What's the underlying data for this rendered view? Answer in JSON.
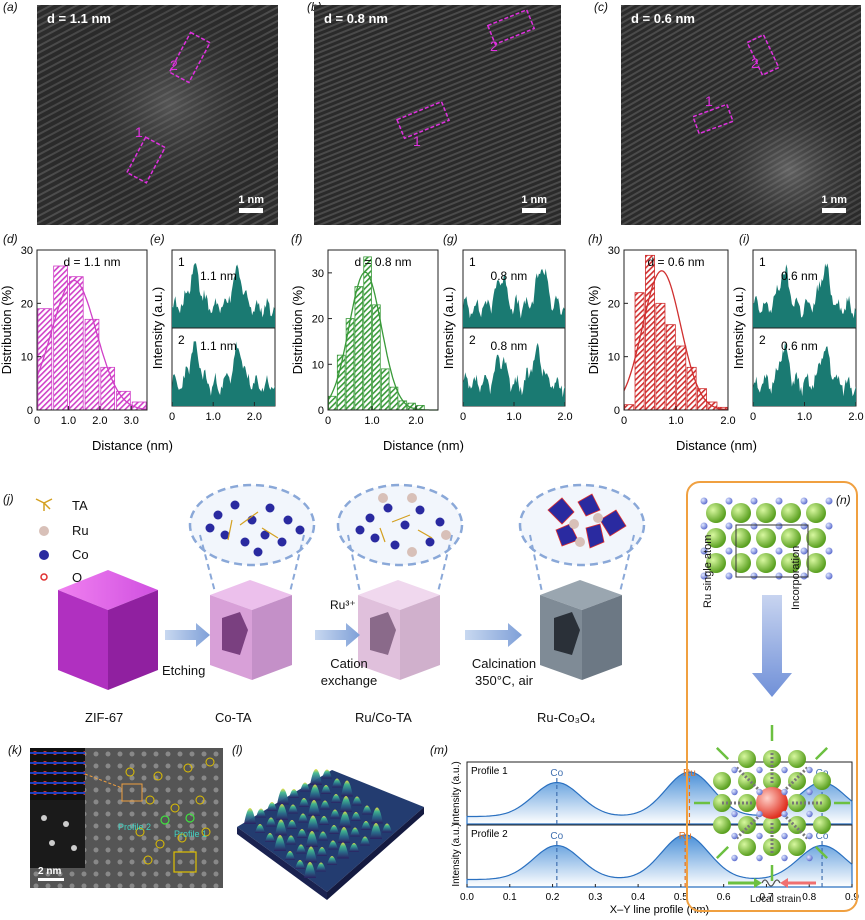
{
  "panel_labels": {
    "a": "(a)",
    "b": "(b)",
    "c": "(c)",
    "d": "(d)",
    "e": "(e)",
    "f": "(f)",
    "g": "(g)",
    "h": "(h)",
    "i": "(i)",
    "j": "(j)",
    "k": "(k)",
    "l": "(l)",
    "m": "(m)",
    "n": "(n)"
  },
  "stem_images": [
    {
      "d_label": "d = 1.1 nm",
      "scale": "1 nm",
      "roi1": "1",
      "roi2": "2"
    },
    {
      "d_label": "d = 0.8 nm",
      "scale": "1 nm",
      "roi1": "1",
      "roi2": "2"
    },
    {
      "d_label": "d = 0.6 nm",
      "scale": "1 nm",
      "roi1": "1",
      "roi2": "2"
    }
  ],
  "chart_data": [
    {
      "type": "bar",
      "title": "d = 1.1 nm",
      "xlabel": "Distance",
      "ylabel": "Distribution (%)",
      "xlim": [
        0,
        3.5
      ],
      "ylim": [
        0,
        30
      ],
      "x": [
        0.25,
        0.75,
        1.25,
        1.75,
        2.25,
        2.75,
        3.25
      ],
      "values": [
        19,
        27,
        25,
        17,
        8,
        3.5,
        1.5
      ],
      "xticks": [
        "0",
        "1.0",
        "2.0",
        "3.0"
      ],
      "yticks": [
        "0",
        "10",
        "20",
        "30"
      ],
      "color": "#d040c8"
    },
    {
      "type": "line",
      "ylabel": "Intensity (a.u.)",
      "xlim": [
        0,
        2.5
      ],
      "xticks": [
        "0",
        "1.0",
        "2.0"
      ],
      "profiles": [
        {
          "id": "1",
          "annotation": "1.1 nm"
        },
        {
          "id": "2",
          "annotation": "1.1 nm"
        }
      ]
    },
    {
      "type": "bar",
      "title": "d = 0.8 nm",
      "xlabel": "Distance",
      "ylabel": "Distribution (%)",
      "xlim": [
        0,
        2.5
      ],
      "ylim": [
        0,
        35
      ],
      "x": [
        0.1,
        0.3,
        0.5,
        0.7,
        0.9,
        1.1,
        1.3,
        1.5,
        1.7,
        1.9,
        2.1
      ],
      "values": [
        3,
        12,
        20,
        27,
        33.5,
        23,
        9,
        5,
        2,
        1.5,
        1
      ],
      "xticks": [
        "0",
        "1.0",
        "2.0"
      ],
      "yticks": [
        "0",
        "10",
        "20",
        "30"
      ],
      "color": "#3a9a3a"
    },
    {
      "type": "line",
      "ylabel": "Intensity (a.u.)",
      "xlim": [
        0,
        2.0
      ],
      "xticks": [
        "0",
        "1.0",
        "2.0"
      ],
      "profiles": [
        {
          "id": "1",
          "annotation": "0.8 nm"
        },
        {
          "id": "2",
          "annotation": "0.8 nm"
        }
      ]
    },
    {
      "type": "bar",
      "title": "d = 0.6 nm",
      "xlabel": "Distance",
      "ylabel": "Distribution (%)",
      "xlim": [
        0,
        2.0
      ],
      "ylim": [
        0,
        30
      ],
      "x": [
        0.1,
        0.3,
        0.5,
        0.7,
        0.9,
        1.1,
        1.3,
        1.5,
        1.7,
        1.9
      ],
      "values": [
        1,
        22,
        29,
        20,
        16,
        12,
        8,
        4,
        1.5,
        0.5
      ],
      "xticks": [
        "0",
        "1.0",
        "2.0"
      ],
      "yticks": [
        "0",
        "10",
        "20",
        "30"
      ],
      "color": "#d03030"
    },
    {
      "type": "line",
      "ylabel": "Intensity (a.u.)",
      "xlim": [
        0,
        2.0
      ],
      "xticks": [
        "0",
        "1.0",
        "2.0"
      ],
      "profiles": [
        {
          "id": "1",
          "annotation": "0.6 nm"
        },
        {
          "id": "2",
          "annotation": "0.6 nm"
        }
      ]
    },
    {
      "type": "line",
      "xlabel": "X–Y line profile (nm)",
      "ylabel": "Intensity (a.u.)",
      "xlim": [
        0,
        0.9
      ],
      "xticks": [
        "0.0",
        "0.1",
        "0.2",
        "0.3",
        "0.4",
        "0.5",
        "0.6",
        "0.7",
        "0.8",
        "0.9"
      ],
      "profiles": [
        {
          "name": "Profile 1",
          "peaks": [
            {
              "x": 0.21,
              "label": "Co"
            },
            {
              "x": 0.52,
              "label": "Ru"
            },
            {
              "x": 0.83,
              "label": "Co"
            }
          ]
        },
        {
          "name": "Profile 2",
          "peaks": [
            {
              "x": 0.21,
              "label": "Co"
            },
            {
              "x": 0.51,
              "label": "Ru"
            },
            {
              "x": 0.83,
              "label": "Co"
            }
          ]
        }
      ]
    }
  ],
  "distance_label": "Distance (nm)",
  "scheme": {
    "legend": [
      {
        "label": "TA"
      },
      {
        "label": "Ru"
      },
      {
        "label": "Co"
      },
      {
        "label": "O"
      }
    ],
    "steps": [
      {
        "name": "ZIF-67"
      },
      {
        "name": "Co-TA"
      },
      {
        "name": "Ru/Co-TA"
      },
      {
        "name": "Ru-Co₃O₄"
      }
    ],
    "arrows": [
      {
        "top": "",
        "bottom": "Etching"
      },
      {
        "top": "Ru³⁺",
        "bottom": "Cation exchange"
      },
      {
        "top": "",
        "bottom": "Calcination 350°C, air"
      }
    ]
  },
  "panel_k": {
    "scale": "2 nm",
    "profile1": "Profile 1",
    "profile2": "Profile 2"
  },
  "panel_n": {
    "label_left": "Ru single atom",
    "label_right": "Incorporation",
    "bottom": "Local strain"
  }
}
